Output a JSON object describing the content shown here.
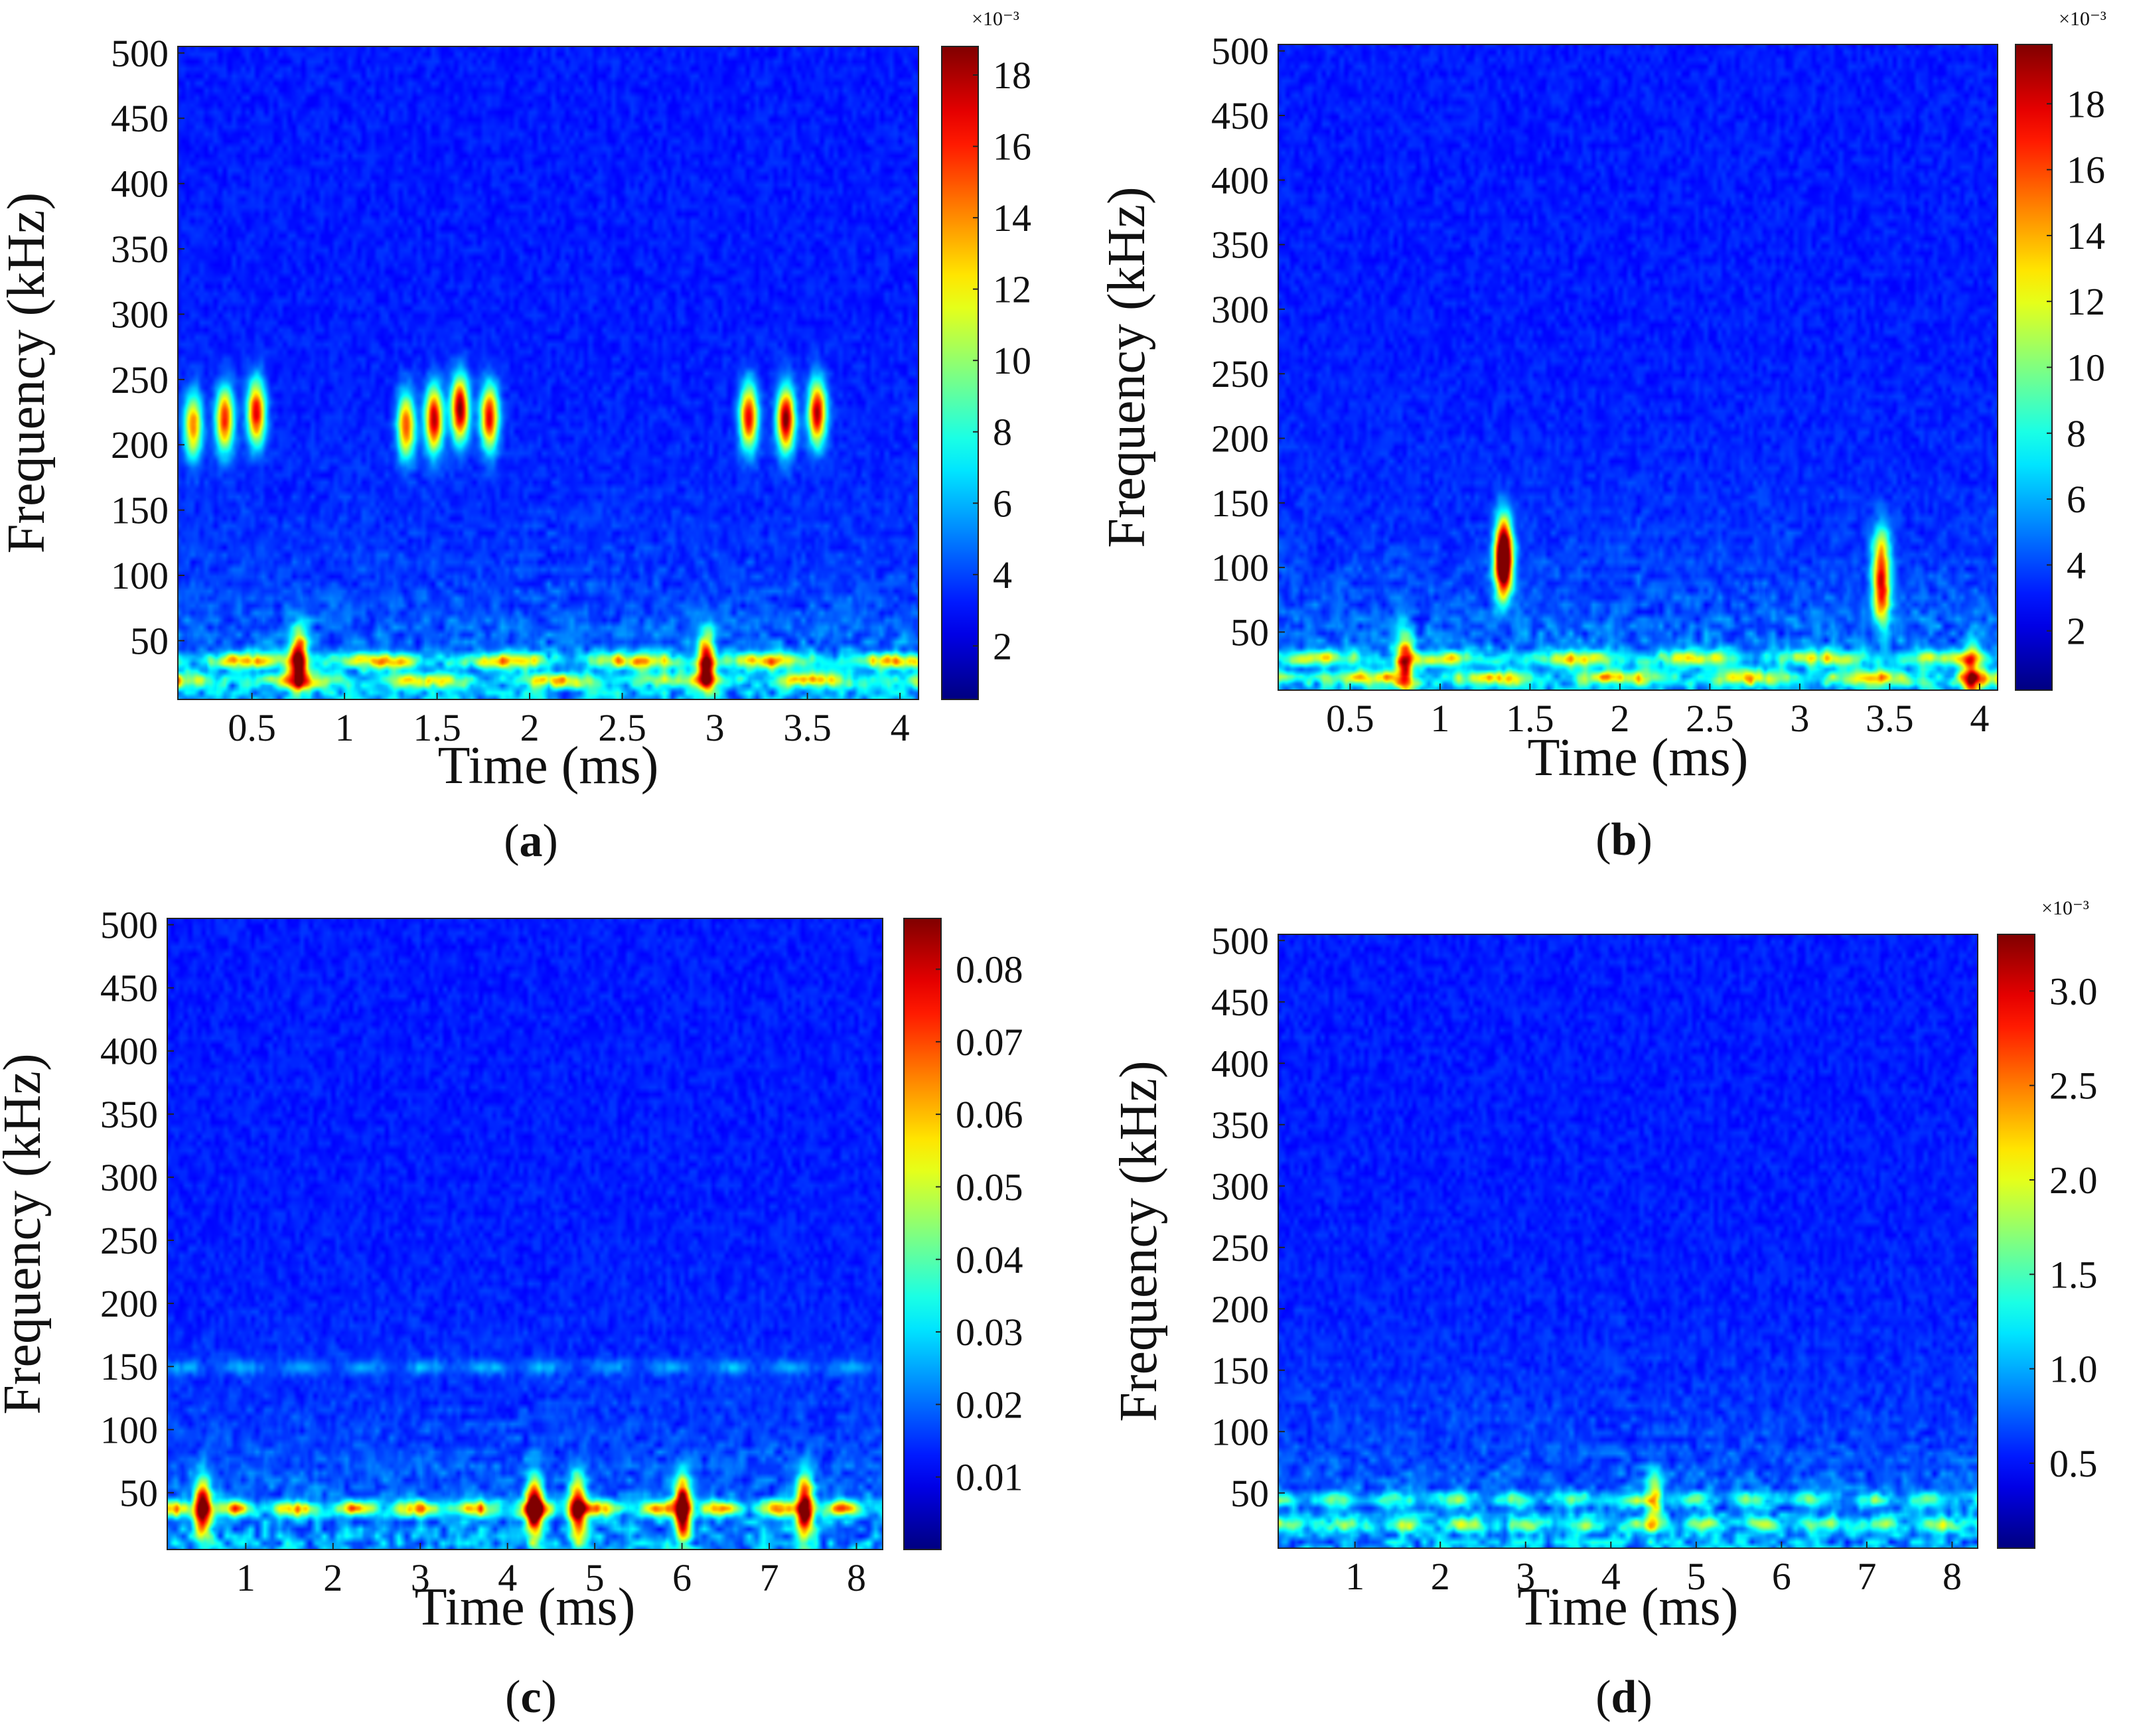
{
  "chart_data": [
    {
      "panel": "a",
      "caption": "(a)",
      "type": "heatmap",
      "xlabel": "Time (ms)",
      "ylabel": "Frequency (kHz)",
      "xlim": [
        0.1,
        4.1
      ],
      "ylim": [
        5,
        505
      ],
      "xticks": [
        0.5,
        1,
        1.5,
        2,
        2.5,
        3,
        3.5,
        4
      ],
      "xtick_labels": [
        "0.5",
        "1",
        "1.5",
        "2",
        "2.5",
        "3",
        "3.5",
        "4"
      ],
      "yticks": [
        50,
        100,
        150,
        200,
        250,
        300,
        350,
        400,
        450,
        500
      ],
      "ytick_labels": [
        "50",
        "100",
        "150",
        "200",
        "250",
        "300",
        "350",
        "400",
        "450",
        "500"
      ],
      "colorbar": {
        "multiplier": "×10⁻³",
        "range": [
          0.5,
          18.8
        ],
        "ticks": [
          2,
          4,
          6,
          8,
          10,
          12,
          14,
          16,
          18
        ],
        "tick_labels": [
          "2",
          "4",
          "6",
          "8",
          "10",
          "12",
          "14",
          "16",
          "18"
        ]
      },
      "features": [
        {
          "kind": "spot",
          "t": 0.18,
          "f": 215,
          "value": 0.6
        },
        {
          "kind": "spot",
          "t": 0.35,
          "f": 220,
          "value": 0.7
        },
        {
          "kind": "spot",
          "t": 0.52,
          "f": 225,
          "value": 0.75
        },
        {
          "kind": "spot",
          "t": 1.33,
          "f": 215,
          "value": 0.65
        },
        {
          "kind": "spot",
          "t": 1.48,
          "f": 220,
          "value": 0.8
        },
        {
          "kind": "spot",
          "t": 1.62,
          "f": 228,
          "value": 0.85
        },
        {
          "kind": "spot",
          "t": 1.78,
          "f": 222,
          "value": 0.75
        },
        {
          "kind": "spot",
          "t": 3.18,
          "f": 222,
          "value": 0.75
        },
        {
          "kind": "spot",
          "t": 3.38,
          "f": 220,
          "value": 0.85
        },
        {
          "kind": "spot",
          "t": 3.55,
          "f": 225,
          "value": 0.8
        },
        {
          "kind": "band",
          "f": 35,
          "value": 0.55
        },
        {
          "kind": "band",
          "f": 20,
          "value": 0.45
        },
        {
          "kind": "spot",
          "t": 0.75,
          "f": 35,
          "value": 0.75
        },
        {
          "kind": "spot",
          "t": 2.95,
          "f": 33,
          "value": 0.7
        }
      ]
    },
    {
      "panel": "b",
      "caption": "(b)",
      "type": "heatmap",
      "xlabel": "Time (ms)",
      "ylabel": "Frequency (kHz)",
      "xlim": [
        0.1,
        4.1
      ],
      "ylim": [
        5,
        505
      ],
      "xticks": [
        0.5,
        1,
        1.5,
        2,
        2.5,
        3,
        3.5,
        4
      ],
      "xtick_labels": [
        "0.5",
        "1",
        "1.5",
        "2",
        "2.5",
        "3",
        "3.5",
        "4"
      ],
      "yticks": [
        50,
        100,
        150,
        200,
        250,
        300,
        350,
        400,
        450,
        500
      ],
      "ytick_labels": [
        "50",
        "100",
        "150",
        "200",
        "250",
        "300",
        "350",
        "400",
        "450",
        "500"
      ],
      "colorbar": {
        "multiplier": "×10⁻³",
        "range": [
          0.2,
          19.8
        ],
        "ticks": [
          2,
          4,
          6,
          8,
          10,
          12,
          14,
          16,
          18
        ],
        "tick_labels": [
          "2",
          "4",
          "6",
          "8",
          "10",
          "12",
          "14",
          "16",
          "18"
        ]
      },
      "features": [
        {
          "kind": "spot",
          "t": 1.35,
          "f": 100,
          "value": 0.85
        },
        {
          "kind": "spot",
          "t": 1.35,
          "f": 120,
          "value": 0.6
        },
        {
          "kind": "spot",
          "t": 3.45,
          "f": 80,
          "value": 0.6
        },
        {
          "kind": "spot",
          "t": 3.45,
          "f": 110,
          "value": 0.45
        },
        {
          "kind": "spot",
          "t": 0.8,
          "f": 28,
          "value": 0.6
        },
        {
          "kind": "band",
          "f": 30,
          "value": 0.45
        },
        {
          "kind": "band",
          "f": 15,
          "value": 0.5
        },
        {
          "kind": "spot",
          "t": 3.95,
          "f": 15,
          "value": 0.55
        }
      ]
    },
    {
      "panel": "c",
      "caption": "(c)",
      "type": "heatmap",
      "xlabel": "Time (ms)",
      "ylabel": "Frequency (kHz)",
      "xlim": [
        0.1,
        8.3
      ],
      "ylim": [
        5,
        505
      ],
      "xticks": [
        1,
        2,
        3,
        4,
        5,
        6,
        7,
        8
      ],
      "xtick_labels": [
        "1",
        "2",
        "3",
        "4",
        "5",
        "6",
        "7",
        "8"
      ],
      "yticks": [
        50,
        100,
        150,
        200,
        250,
        300,
        350,
        400,
        450,
        500
      ],
      "ytick_labels": [
        "50",
        "100",
        "150",
        "200",
        "250",
        "300",
        "350",
        "400",
        "450",
        "500"
      ],
      "colorbar": {
        "multiplier": "",
        "range": [
          0.0,
          0.087
        ],
        "ticks": [
          0.01,
          0.02,
          0.03,
          0.04,
          0.05,
          0.06,
          0.07,
          0.08
        ],
        "tick_labels": [
          "0.01",
          "0.02",
          "0.03",
          "0.04",
          "0.05",
          "0.06",
          "0.07",
          "0.08"
        ]
      },
      "features": [
        {
          "kind": "band",
          "f": 150,
          "value": 0.15
        },
        {
          "kind": "band",
          "f": 38,
          "value": 0.6
        },
        {
          "kind": "spot",
          "t": 0.5,
          "f": 38,
          "value": 0.85
        },
        {
          "kind": "spot",
          "t": 4.3,
          "f": 38,
          "value": 0.85
        },
        {
          "kind": "spot",
          "t": 4.8,
          "f": 38,
          "value": 0.8
        },
        {
          "kind": "spot",
          "t": 6.0,
          "f": 38,
          "value": 0.9
        },
        {
          "kind": "spot",
          "t": 7.4,
          "f": 38,
          "value": 0.85
        }
      ]
    },
    {
      "panel": "d",
      "caption": "(d)",
      "type": "heatmap",
      "xlabel": "Time (ms)",
      "ylabel": "Frequency (kHz)",
      "xlim": [
        0.1,
        8.3
      ],
      "ylim": [
        5,
        505
      ],
      "xticks": [
        1,
        2,
        3,
        4,
        5,
        6,
        7,
        8
      ],
      "xtick_labels": [
        "1",
        "2",
        "3",
        "4",
        "5",
        "6",
        "7",
        "8"
      ],
      "yticks": [
        50,
        100,
        150,
        200,
        250,
        300,
        350,
        400,
        450,
        500
      ],
      "ytick_labels": [
        "50",
        "100",
        "150",
        "200",
        "250",
        "300",
        "350",
        "400",
        "450",
        "500"
      ],
      "colorbar": {
        "multiplier": "×10⁻³",
        "range": [
          0.05,
          3.3
        ],
        "ticks": [
          0.5,
          1.0,
          1.5,
          2.0,
          2.5,
          3.0
        ],
        "tick_labels": [
          "0.5",
          "1.0",
          "1.5",
          "2.0",
          "2.5",
          "3.0"
        ]
      },
      "features": [
        {
          "kind": "band",
          "f": 45,
          "value": 0.3
        },
        {
          "kind": "band",
          "f": 25,
          "value": 0.35
        },
        {
          "kind": "spot",
          "t": 4.5,
          "f": 45,
          "value": 0.4
        }
      ]
    }
  ]
}
